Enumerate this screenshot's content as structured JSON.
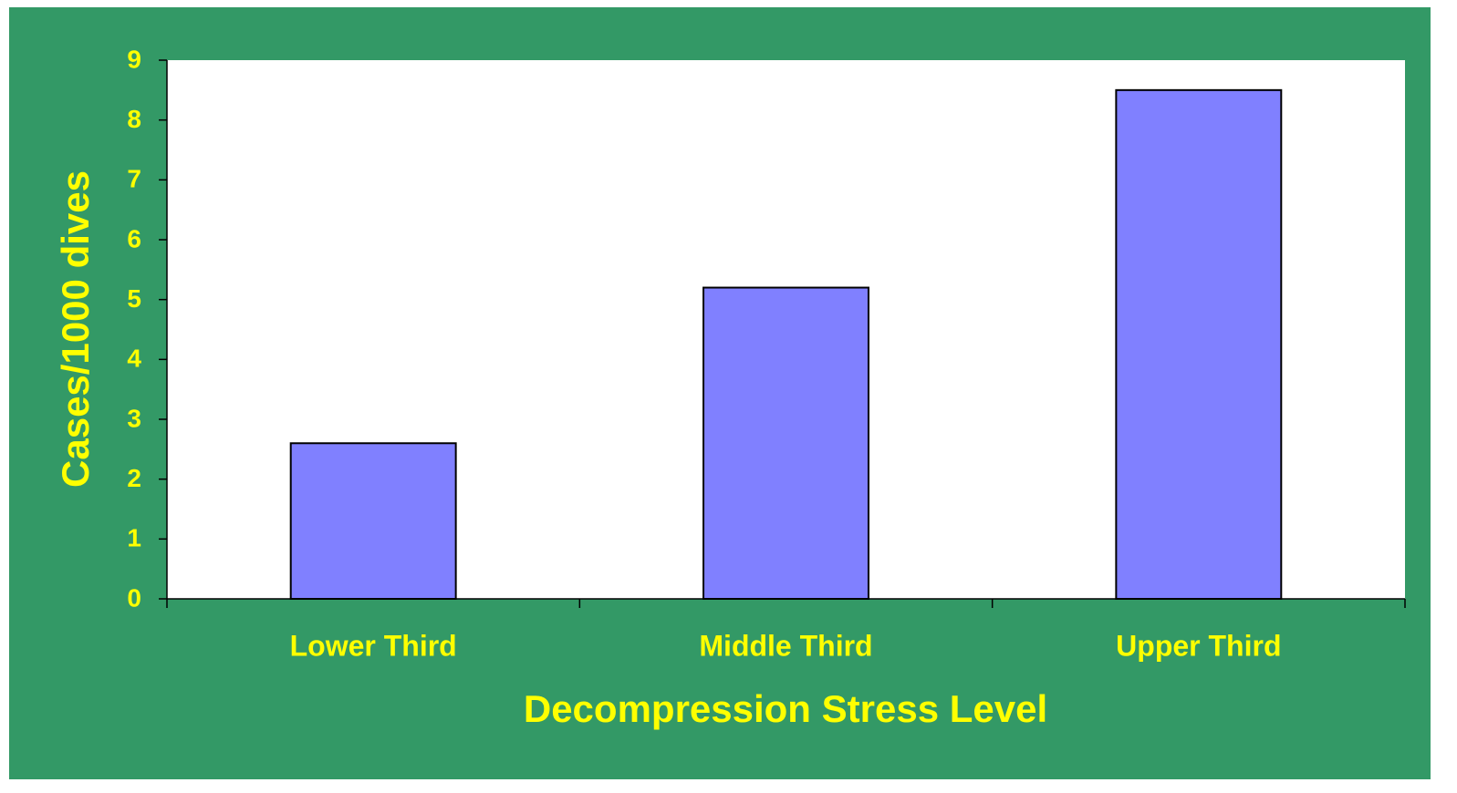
{
  "chart_data": {
    "type": "bar",
    "x_label": "Decompression Stress Level",
    "y_label": "Cases/1000 dives",
    "categories": [
      "Lower Third",
      "Middle Third",
      "Upper Third"
    ],
    "values": [
      2.6,
      5.2,
      8.5
    ],
    "color": "#8080ff",
    "ylim": [
      0,
      9
    ],
    "yticks": [
      0,
      1,
      2,
      3,
      4,
      5,
      6,
      7,
      8,
      9
    ],
    "grid": false
  }
}
